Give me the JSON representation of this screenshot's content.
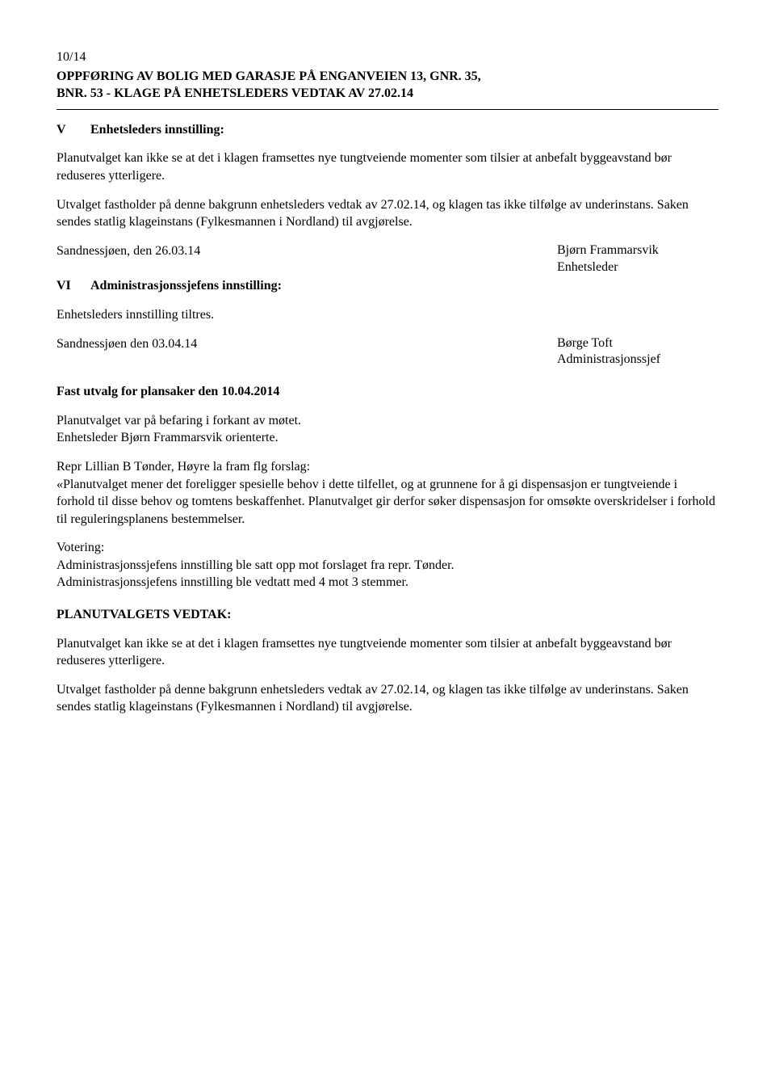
{
  "header": {
    "case_number": "10/14",
    "title_line1": "OPPFØRING AV BOLIG MED GARASJE PÅ ENGANVEIEN 13, GNR. 35,",
    "title_line2": "BNR. 53 - KLAGE PÅ ENHETSLEDERS VEDTAK AV 27.02.14"
  },
  "section_v": {
    "roman": "V",
    "label": "Enhetsleders innstilling:",
    "para1": "Planutvalget kan ikke se at det i klagen framsettes nye tungtveiende momenter som tilsier at anbefalt byggeavstand bør reduseres ytterligere.",
    "para2": "Utvalget fastholder på denne bakgrunn enhetsleders vedtak av 27.02.14, og klagen tas ikke tilfølge av underinstans. Saken sendes statlig klageinstans (Fylkesmannen i Nordland) til avgjørelse."
  },
  "sig1": {
    "left": "Sandnessjøen, den 26.03.14",
    "name": "Bjørn Frammarsvik",
    "role": "Enhetsleder"
  },
  "section_vi": {
    "roman": "VI",
    "label": "Administrasjonssjefens innstilling:",
    "para": "Enhetsleders innstilling tiltres."
  },
  "sig2": {
    "left": "Sandnessjøen den 03.04.14",
    "name": "Børge Toft",
    "role": "Administrasjonssjef"
  },
  "meeting": {
    "heading": "Fast utvalg for plansaker den 10.04.2014",
    "line1": "Planutvalget var på befaring i forkant av møtet.",
    "line2": "Enhetsleder Bjørn Frammarsvik orienterte.",
    "proposal_intro": "Repr Lillian B Tønder, Høyre la fram flg forslag:",
    "proposal_body": "«Planutvalget mener det foreligger spesielle behov i dette tilfellet, og at grunnene for å gi dispensasjon er tungtveiende i forhold til disse behov og tomtens beskaffenhet. Planutvalget gir derfor søker dispensasjon for omsøkte overskridelser i forhold til reguleringsplanens bestemmelser.",
    "voting_heading": "Votering:",
    "voting_line1": "Administrasjonssjefens innstilling ble satt opp mot forslaget fra repr. Tønder.",
    "voting_line2": "Administrasjonssjefens innstilling ble vedtatt med 4 mot 3 stemmer."
  },
  "decision": {
    "heading": "PLANUTVALGETS VEDTAK:",
    "para1": "Planutvalget kan ikke se at det i klagen framsettes nye tungtveiende momenter som tilsier at anbefalt byggeavstand bør reduseres ytterligere.",
    "para2": "Utvalget fastholder på denne bakgrunn enhetsleders vedtak av 27.02.14, og klagen tas ikke tilfølge av underinstans. Saken sendes statlig klageinstans (Fylkesmannen i Nordland) til avgjørelse."
  }
}
